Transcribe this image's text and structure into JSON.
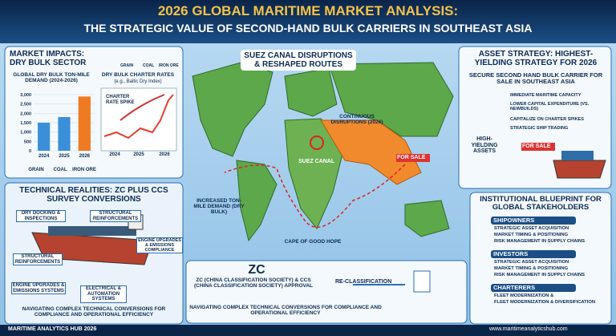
{
  "header": {
    "title": "2026 GLOBAL MARITIME MARKET ANALYSIS:",
    "subtitle": "THE STRATEGIC VALUE OF SECOND-HAND BULK CARRIERS IN SOUTHEAST ASIA"
  },
  "market_impacts": {
    "title": "MARKET IMPACTS: DRY BULK SECTOR",
    "commodities": [
      "GRAIN",
      "COAL",
      "IRON ORE"
    ],
    "demand_chart": {
      "title": "GLOBAL DRY BULK TON-MILE DEMAND (2024-2026)",
      "categories": [
        "2024",
        "2025",
        "2026"
      ],
      "values": [
        1500,
        1800,
        2900
      ],
      "colors": [
        "#3b8fd9",
        "#3b8fd9",
        "#f07a22"
      ],
      "ylim": [
        0,
        3000
      ],
      "yticks": [
        0,
        500,
        {
          "value": 1000,
          "label": "1,000"
        },
        {
          "value": 1500,
          "label": "1,500"
        },
        {
          "value": 2000,
          "label": "2,000"
        },
        {
          "value": 2500,
          "label": "2,500"
        },
        {
          "value": 3000,
          "label": "3,000"
        }
      ]
    },
    "rates_chart": {
      "title": "DRY BULK CHARTER RATES",
      "subtitle": "(e.g., Baltic Dry Index)",
      "annotation": "CHARTER RATE SPIKE",
      "categories": [
        "2024",
        "2025",
        "2026"
      ]
    },
    "cargo_labels": [
      "GRAIN",
      "COAL",
      "IRON ORE"
    ]
  },
  "map": {
    "title": "SUEZ CANAL DISRUPTIONS & RESHAPED ROUTES",
    "disruptions": "CONTINUOUS DISRUPTIONS (2026)",
    "suez": "SUEZ CANAL",
    "for_sale": "FOR SALE",
    "demand": "INCREASED TON-MILE DEMAND (DRY BULK)",
    "cape": "CAPE OF GOOD HOPE"
  },
  "asset_strategy": {
    "title": "ASSET STRATEGY: HIGHEST-YIELDING STRATEGY FOR 2026",
    "subtitle": "SECURE SECOND HAND BULK CARRIER FOR SALE IN SOUTHEAST ASIA",
    "bullets": [
      "IMMEDIATE MARITIME CAPACITY",
      "LOWER CAPITAL EXPENDITURE (VS. NEWBUILDS)",
      "CAPITALIZE ON CHARTER SPIKES",
      "STRATEGIC SHIP TRADING"
    ],
    "assets": "HIGH-YIELDING ASSETS",
    "for_sale": "FOR SALE"
  },
  "technical": {
    "title": "TECHNICAL REALITIES: ZC PLUS CCS SURVEY CONVERSIONS",
    "labels": [
      "DRY DOCKING & INSPECTIONS",
      "STRUCTURAL REINFORCEMENTS",
      "ENGINE UPGRADES & EMISSIONS COMPLIANCE",
      "STRUCTURAL REINFORCEMENTS",
      "ENGINE UPGRADES & EMISSIONS SYSTEMS",
      "ELECTRICAL & AUTOMATION SYSTEMS"
    ],
    "footer": "NAVIGATING COMPLEX TECHNICAL CONVERSIONS FOR COMPLIANCE AND OPERATIONAL EFFICIENCY"
  },
  "classification": {
    "logo": "ZC",
    "approval": "ZC (CHINA CLASSIFICATION SOCIETY) & CCS (CHINA CLASSIFICATION SOCIETY) APPROVAL",
    "reclass": "RE-CLASSIFICATION",
    "footer": "NAVIGATING COMPLEX TECHNICAL CONVERSIONS FOR COMPLIANCE AND OPERATIONAL EFFICIENCY"
  },
  "blueprint": {
    "title": "INSTITUTIONAL BLUEPRINT FOR GLOBAL STAKEHOLDERS",
    "groups": [
      {
        "name": "SHIPOWNERS",
        "items": [
          "STRATEGIC ASSET ACQUISITION",
          "MARKET TIMING & POSITIONING",
          "RISK MANAGEMENT IN SUPPLY CHAINS"
        ]
      },
      {
        "name": "INVESTORS",
        "items": [
          "STRATEGIC ASSET ACQUISITION",
          "MARKET TIMING & POSITIONING",
          "RISK MANAGEMENT IN SUPPLY CHAINS"
        ]
      },
      {
        "name": "CHARTERERS",
        "items": [
          "FLEET MODERNIZATION &",
          "FLEET MODERNIZATION & DIVERSIFICATION"
        ]
      }
    ]
  },
  "footer": {
    "brand": "MARITIME ANALYTICS HUB 2026",
    "url": "www.maritimeanalyticshub.com"
  }
}
